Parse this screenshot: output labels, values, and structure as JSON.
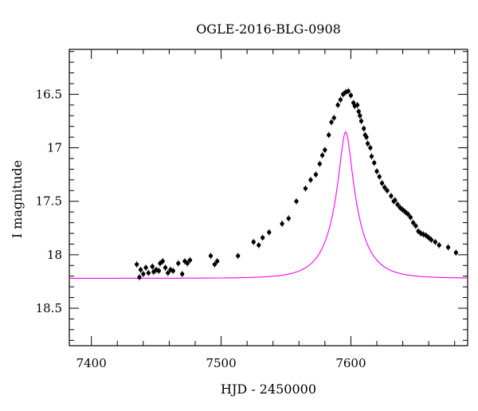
{
  "chart_data": {
    "type": "scatter",
    "title": "OGLE-2016-BLG-0908",
    "xlabel": "HJD - 2450000",
    "ylabel": "I magnitude",
    "xlim": [
      7383,
      7690
    ],
    "ylim": [
      18.85,
      16.08
    ],
    "y_inverted": true,
    "x_ticks": [
      7400,
      7500,
      7600
    ],
    "x_tick_labels": [
      "7400",
      "7500",
      "7600"
    ],
    "y_ticks": [
      16.5,
      17,
      17.5,
      18,
      18.5
    ],
    "y_tick_labels": [
      "16.5",
      "17",
      "17.5",
      "18",
      "18.5"
    ],
    "x_minor_step": 20,
    "y_minor_step": 0.1,
    "grid": false,
    "colors": {
      "points": "#000000",
      "model": "#ff00ff",
      "axes": "#000000"
    },
    "series": [
      {
        "kind": "points",
        "x": [
          7435,
          7437,
          7438,
          7440,
          7442,
          7444,
          7447,
          7448,
          7450,
          7452,
          7453,
          7455,
          7457,
          7459,
          7461,
          7463,
          7467,
          7470,
          7472,
          7474,
          7476,
          7492,
          7495,
          7497,
          7513,
          7525,
          7529,
          7532,
          7537,
          7547,
          7552,
          7558,
          7565,
          7569,
          7573,
          7576,
          7578,
          7580,
          7583,
          7585,
          7587,
          7590,
          7592,
          7594,
          7596,
          7598,
          7600,
          7602,
          7603,
          7605,
          7606,
          7607,
          7608,
          7610,
          7611,
          7612,
          7613,
          7615,
          7616,
          7618,
          7620,
          7622,
          7624,
          7626,
          7628,
          7631,
          7633,
          7634,
          7636,
          7638,
          7640,
          7642,
          7644,
          7646,
          7648,
          7650,
          7652,
          7654,
          7656,
          7658,
          7660,
          7662,
          7665,
          7668,
          7675,
          7681
        ],
        "y": [
          18.09,
          18.21,
          18.14,
          18.18,
          18.12,
          18.17,
          18.11,
          18.16,
          18.14,
          18.15,
          18.08,
          18.06,
          18.12,
          18.17,
          18.14,
          18.15,
          18.08,
          18.18,
          18.06,
          18.08,
          18.05,
          18.01,
          18.09,
          18.06,
          18.01,
          17.88,
          17.91,
          17.84,
          17.79,
          17.71,
          17.66,
          17.5,
          17.38,
          17.3,
          17.25,
          17.15,
          17.07,
          17.02,
          16.88,
          16.76,
          16.72,
          16.6,
          16.55,
          16.5,
          16.48,
          16.47,
          16.51,
          16.58,
          16.61,
          16.6,
          16.66,
          16.7,
          16.75,
          16.82,
          16.88,
          16.9,
          16.96,
          17.0,
          17.08,
          17.14,
          17.22,
          17.27,
          17.33,
          17.37,
          17.4,
          17.45,
          17.5,
          17.49,
          17.53,
          17.56,
          17.58,
          17.6,
          17.62,
          17.65,
          17.7,
          17.73,
          17.78,
          17.8,
          17.81,
          17.82,
          17.84,
          17.86,
          17.88,
          17.91,
          17.93,
          17.98
        ]
      },
      {
        "kind": "model",
        "t0": 7596,
        "u0": 0.2,
        "tE": 22,
        "baseline": 18.22,
        "blend_fraction": 0.62
      }
    ]
  }
}
